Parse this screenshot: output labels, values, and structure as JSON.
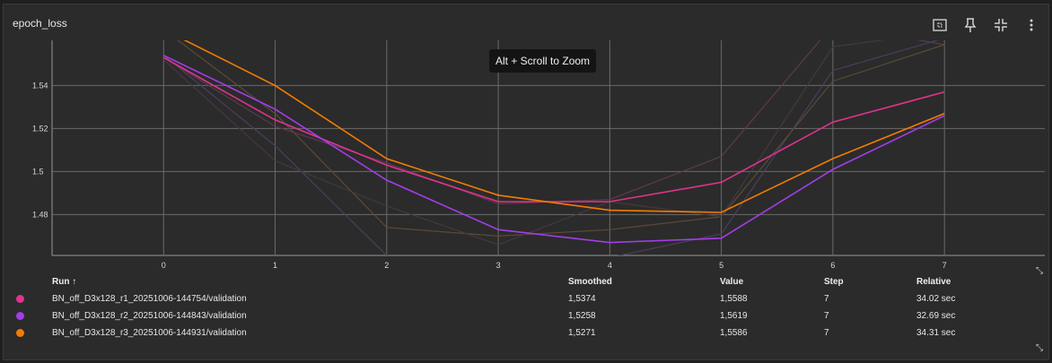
{
  "panel": {
    "title": "epoch_loss",
    "tooltip": "Alt + Scroll to Zoom"
  },
  "toolbar": {
    "icons": [
      "fit-to-data-icon",
      "pin-icon",
      "collapse-icon",
      "more-vertical-icon"
    ]
  },
  "table": {
    "headers": {
      "run": "Run ↑",
      "smoothed": "Smoothed",
      "value": "Value",
      "step": "Step",
      "relative": "Relative"
    },
    "rows": [
      {
        "run": "BN_off_D3x128_r1_20251006-144754/validation",
        "smoothed": "1,5374",
        "value": "1,5588",
        "step": "7",
        "relative": "34.02 sec",
        "color": "#e0338f"
      },
      {
        "run": "BN_off_D3x128_r2_20251006-144843/validation",
        "smoothed": "1,5258",
        "value": "1,5619",
        "step": "7",
        "relative": "32.69 sec",
        "color": "#a23ee8"
      },
      {
        "run": "BN_off_D3x128_r3_20251006-144931/validation",
        "smoothed": "1,5271",
        "value": "1,5586",
        "step": "7",
        "relative": "34.31 sec",
        "color": "#f57c00"
      }
    ]
  },
  "chart_data": {
    "type": "line",
    "xlim": [
      -1.0,
      7.9
    ],
    "ylim": [
      1.461,
      1.561
    ],
    "xticks": [
      0,
      1,
      2,
      3,
      4,
      5,
      6,
      7
    ],
    "xtick_labels": [
      "0",
      "1",
      "2",
      "3",
      "4",
      "5",
      "6",
      "7"
    ],
    "yticks": [
      1.48,
      1.5,
      1.52,
      1.54
    ],
    "ytick_labels": [
      "1.48",
      "1.5",
      "1.52",
      "1.54"
    ],
    "grid": true,
    "x": [
      0,
      1,
      2,
      3,
      4,
      5,
      6,
      7
    ],
    "series": [
      {
        "values": [
          1.553,
          1.524,
          1.503,
          1.486,
          1.486,
          1.495,
          1.523,
          1.537
        ],
        "color": "#e0338f",
        "style": "smoothed"
      },
      {
        "values": [
          1.554,
          1.529,
          1.496,
          1.473,
          1.467,
          1.469,
          1.501,
          1.526
        ],
        "color": "#a23ee8",
        "style": "smoothed"
      },
      {
        "values": [
          1.566,
          1.54,
          1.506,
          1.489,
          1.482,
          1.481,
          1.506,
          1.527
        ],
        "color": "#f57c00",
        "style": "smoothed"
      },
      {
        "values": [
          1.553,
          1.521,
          1.504,
          1.485,
          1.487,
          1.507,
          1.568,
          1.559
        ],
        "color": "#5e3a4c",
        "style": "raw"
      },
      {
        "values": [
          1.554,
          1.512,
          1.461,
          1.446,
          1.46,
          1.471,
          1.547,
          1.562
        ],
        "color": "#4a3f5e",
        "style": "raw"
      },
      {
        "values": [
          1.566,
          1.527,
          1.474,
          1.47,
          1.473,
          1.479,
          1.542,
          1.559
        ],
        "color": "#5c4a36",
        "style": "raw"
      },
      {
        "values": [
          1.552,
          1.505,
          1.484,
          1.466,
          1.486,
          1.479,
          1.558,
          1.565
        ],
        "color": "#47383f",
        "style": "raw"
      }
    ]
  }
}
